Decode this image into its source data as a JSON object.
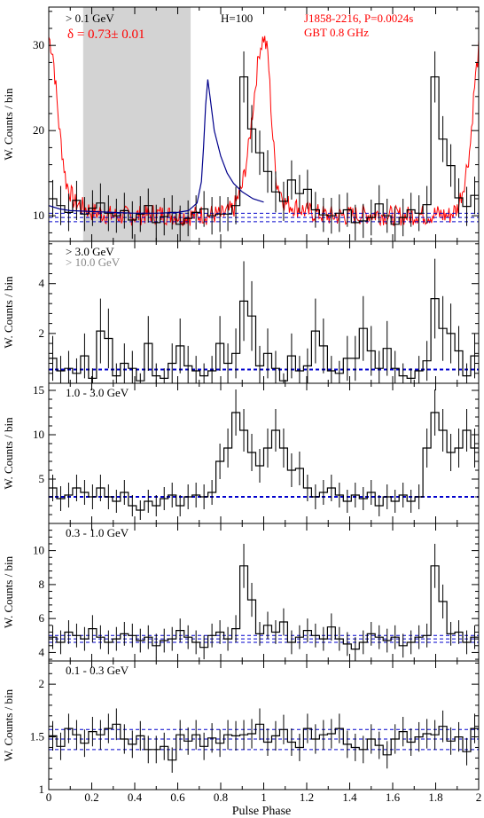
{
  "figure": {
    "xlabel": "Pulse Phase",
    "ylabel": "W. Counts / bin",
    "xticks": [
      "0",
      "0.2",
      "0.4",
      "0.6",
      "0.8",
      "1",
      "1.2",
      "1.4",
      "1.6",
      "1.8",
      "2"
    ],
    "colors": {
      "hist": "#000000",
      "radio": "#ff0000",
      "fit": "#00008b",
      "baseline": "#0000cc",
      "shade": "#d3d3d3",
      "gray_text": "#888888"
    }
  },
  "chart_data": [
    {
      "type": "histogram",
      "panel": "top",
      "energy_label": "> 0.1 GeV",
      "annotation_delta": "δ = 0.73± 0.01",
      "annotation_h": "H=100",
      "pulsar_label": "J1858-2216, P=0.0024s",
      "radio_label": "GBT 0.8 GHz",
      "xlim": [
        0,
        2
      ],
      "ylim": [
        7,
        34.5
      ],
      "yticks": [
        10,
        20,
        30
      ],
      "shaded_region": [
        0.16,
        0.66
      ],
      "background_levels": [
        9.3,
        9.8,
        10.3
      ],
      "values": [
        12.0,
        11.2,
        10.4,
        11.8,
        10.2,
        10.9,
        11.5,
        10.3,
        10.0,
        10.6,
        9.5,
        10.2,
        11.2,
        9.2,
        9.9,
        10.4,
        9.0,
        9.7,
        10.4,
        10.8,
        10.0,
        10.2,
        10.2,
        11.2,
        26.3,
        20.2,
        17.4,
        15.2,
        12.8,
        11.7,
        14.2,
        12.6,
        13.1,
        10.7,
        10.1,
        10.0,
        10.3,
        10.7,
        9.2,
        9.4,
        9.8,
        11.4,
        10.0,
        9.0,
        9.8,
        10.7,
        10.3,
        11.3,
        26.3,
        19.0,
        15.9,
        12.1,
        11.1,
        12.4
      ],
      "errors": [
        2.2,
        2.3,
        2.2,
        2.3,
        2.0,
        2.1,
        2.3,
        2.1,
        2.0,
        2.1,
        2.2,
        2.1,
        2.0,
        2.1,
        2.2,
        2.0,
        2.2,
        2.1,
        2.0,
        2.1,
        2.2,
        2.1,
        2.0,
        2.2,
        3.0,
        2.8,
        2.6,
        2.5,
        2.4,
        2.3,
        2.3,
        2.2,
        2.3,
        2.1,
        2.0,
        2.1,
        2.2,
        2.0,
        2.1,
        2.0,
        2.1,
        2.2,
        2.0,
        2.1,
        2.2,
        2.0,
        2.1,
        2.2,
        3.0,
        2.7,
        2.5,
        2.3,
        2.3,
        2.2
      ],
      "radio_profile_phase": [
        0.0,
        0.02,
        0.05,
        0.08,
        0.12,
        0.2,
        0.3,
        0.4,
        0.5,
        0.6,
        0.68,
        0.72,
        0.74,
        0.76,
        0.8,
        0.86,
        0.9,
        0.93,
        0.96,
        0.98,
        1.0,
        1.02,
        1.04,
        1.06,
        1.1,
        1.2,
        1.3,
        1.4,
        1.5,
        1.6,
        1.68,
        1.72,
        1.75,
        1.8,
        1.86,
        1.9,
        1.93,
        1.96,
        1.98,
        2.0
      ],
      "radio_profile_value": [
        31.0,
        29.0,
        20.0,
        14.0,
        11.5,
        10.5,
        10.0,
        10.0,
        10.2,
        10.0,
        10.0,
        10.2,
        10.0,
        10.2,
        10.0,
        10.8,
        13.5,
        18.0,
        25.0,
        29.5,
        31.0,
        29.0,
        20.0,
        14.0,
        11.5,
        10.5,
        10.0,
        10.0,
        10.2,
        10.0,
        10.0,
        10.2,
        10.0,
        10.2,
        10.0,
        10.8,
        13.5,
        18.0,
        25.0,
        29.5
      ],
      "fit_phase": [
        0.0,
        0.05,
        0.1,
        0.2,
        0.3,
        0.4,
        0.5,
        0.6,
        0.65,
        0.69,
        0.71,
        0.72,
        0.73,
        0.74,
        0.75,
        0.77,
        0.8,
        0.83,
        0.86,
        0.9,
        0.95,
        1.0
      ],
      "fit_value": [
        11.2,
        10.8,
        10.6,
        10.5,
        10.4,
        10.3,
        10.3,
        10.4,
        10.6,
        11.5,
        14.0,
        18.0,
        23.0,
        26.0,
        24.0,
        20.0,
        17.0,
        15.0,
        13.8,
        12.8,
        12.0,
        11.6
      ]
    },
    {
      "type": "histogram",
      "panel": "3gev",
      "energy_label": "> 3.0 GeV",
      "energy_label_2": "> 10.0 GeV",
      "xlim": [
        0,
        2
      ],
      "ylim": [
        0,
        5.7
      ],
      "yticks": [
        2,
        4
      ],
      "background_levels": [
        0.55
      ],
      "values": [
        1.0,
        0.5,
        0.6,
        0.4,
        1.1,
        0.2,
        2.1,
        1.8,
        0.3,
        0.8,
        0.6,
        0.1,
        1.6,
        0.3,
        0.2,
        0.8,
        1.5,
        0.7,
        0.5,
        0.3,
        0.5,
        1.6,
        0.8,
        1.2,
        3.3,
        2.7,
        0.7,
        1.2,
        0.6,
        0.1,
        1.1,
        0.5,
        0.7,
        2.1,
        1.5,
        0.5,
        0.4,
        1.0,
        1.0,
        2.2,
        1.3,
        0.6,
        1.4,
        0.6,
        0.3,
        0.2,
        0.5,
        0.9,
        3.4,
        2.2,
        2.0,
        1.3,
        0.3,
        1.1
      ],
      "errors": [
        0.9,
        0.6,
        0.7,
        0.6,
        0.9,
        0.4,
        1.3,
        1.2,
        0.5,
        0.8,
        0.7,
        0.3,
        1.1,
        0.5,
        0.4,
        0.8,
        1.1,
        0.8,
        0.6,
        0.5,
        0.6,
        1.1,
        0.8,
        1.0,
        1.6,
        1.4,
        0.8,
        1.0,
        0.7,
        0.3,
        0.9,
        0.6,
        0.7,
        1.3,
        1.1,
        0.6,
        0.5,
        0.9,
        0.9,
        1.3,
        1.0,
        0.7,
        1.1,
        0.7,
        0.5,
        0.4,
        0.6,
        0.8,
        1.6,
        1.3,
        1.2,
        1.0,
        0.5,
        0.9
      ]
    },
    {
      "type": "histogram",
      "panel": "1to3",
      "energy_label": "1.0 - 3.0 GeV",
      "xlim": [
        0,
        2
      ],
      "ylim": [
        0,
        15.8
      ],
      "yticks": [
        5,
        10,
        15
      ],
      "background_levels": [
        3.0
      ],
      "values": [
        4.0,
        2.8,
        3.2,
        4.0,
        3.5,
        3.0,
        4.0,
        3.0,
        2.5,
        3.5,
        2.0,
        1.5,
        2.5,
        2.0,
        2.8,
        3.2,
        2.0,
        3.0,
        3.2,
        3.0,
        3.5,
        7.0,
        8.5,
        12.5,
        10.5,
        8.0,
        6.5,
        8.5,
        10.5,
        8.5,
        6.0,
        6.2,
        4.0,
        3.0,
        3.5,
        4.0,
        3.2,
        2.5,
        3.2,
        2.8,
        3.5,
        2.0,
        3.0,
        2.5,
        3.2,
        2.5,
        3.0,
        8.5,
        12.5,
        10.5,
        8.0,
        8.5,
        10.5,
        8.5
      ],
      "errors": [
        1.5,
        1.4,
        1.4,
        1.5,
        1.4,
        1.4,
        1.5,
        1.4,
        1.3,
        1.4,
        1.2,
        1.1,
        1.3,
        1.2,
        1.3,
        1.4,
        1.2,
        1.4,
        1.4,
        1.4,
        1.4,
        2.0,
        2.2,
        2.6,
        2.4,
        2.1,
        1.9,
        2.2,
        2.4,
        2.2,
        1.9,
        1.9,
        1.5,
        1.4,
        1.4,
        1.5,
        1.4,
        1.3,
        1.4,
        1.3,
        1.4,
        1.2,
        1.4,
        1.3,
        1.4,
        1.3,
        1.4,
        2.2,
        2.6,
        2.4,
        2.1,
        2.2,
        2.4,
        2.2
      ]
    },
    {
      "type": "histogram",
      "panel": "03to1",
      "energy_label": "0.3 - 1.0 GeV",
      "xlim": [
        0,
        2
      ],
      "ylim": [
        3.5,
        11.6
      ],
      "yticks": [
        4,
        6,
        8,
        10
      ],
      "background_levels": [
        4.6,
        4.8,
        5.0
      ],
      "values": [
        4.9,
        4.6,
        5.2,
        5.0,
        4.8,
        5.4,
        4.9,
        4.6,
        4.8,
        5.1,
        5.0,
        4.7,
        4.9,
        4.4,
        4.7,
        4.8,
        5.3,
        4.9,
        4.6,
        4.3,
        5.0,
        5.2,
        4.8,
        5.4,
        9.1,
        7.1,
        5.1,
        5.6,
        5.2,
        5.8,
        4.6,
        4.9,
        5.3,
        5.0,
        4.8,
        5.5,
        4.8,
        4.5,
        4.2,
        4.6,
        5.1,
        4.9,
        4.7,
        4.9,
        4.4,
        4.6,
        4.9,
        5.0,
        9.1,
        7.0,
        5.1,
        5.2,
        4.6,
        4.9
      ],
      "errors": [
        0.7,
        0.7,
        0.7,
        0.7,
        0.7,
        0.8,
        0.7,
        0.7,
        0.7,
        0.7,
        0.7,
        0.7,
        0.7,
        0.7,
        0.7,
        0.7,
        0.7,
        0.7,
        0.7,
        0.7,
        0.7,
        0.7,
        0.7,
        0.8,
        1.3,
        1.0,
        0.7,
        0.8,
        0.7,
        0.8,
        0.7,
        0.7,
        0.7,
        0.7,
        0.7,
        0.8,
        0.7,
        0.7,
        0.7,
        0.7,
        0.7,
        0.7,
        0.7,
        0.7,
        0.7,
        0.7,
        0.7,
        0.7,
        1.3,
        1.0,
        0.7,
        0.7,
        0.7,
        0.7
      ]
    },
    {
      "type": "histogram",
      "panel": "01to03",
      "energy_label": "0.1 - 0.3 GeV",
      "xlim": [
        0,
        2
      ],
      "ylim": [
        1.0,
        2.22
      ],
      "yticks": [
        1,
        1.5,
        2
      ],
      "yticklabels": [
        "1",
        "1.5",
        "2"
      ],
      "background_levels": [
        1.38,
        1.48,
        1.57
      ],
      "values": [
        1.51,
        1.41,
        1.58,
        1.52,
        1.44,
        1.55,
        1.52,
        1.58,
        1.62,
        1.48,
        1.43,
        1.51,
        1.38,
        1.38,
        1.41,
        1.28,
        1.52,
        1.46,
        1.52,
        1.41,
        1.49,
        1.44,
        1.52,
        1.51,
        1.52,
        1.53,
        1.62,
        1.45,
        1.51,
        1.57,
        1.45,
        1.4,
        1.58,
        1.48,
        1.52,
        1.53,
        1.58,
        1.43,
        1.4,
        1.38,
        1.48,
        1.42,
        1.33,
        1.48,
        1.55,
        1.45,
        1.5,
        1.53,
        1.52,
        1.6,
        1.46,
        1.5,
        1.36,
        1.58
      ],
      "errors": [
        0.14,
        0.13,
        0.14,
        0.14,
        0.13,
        0.14,
        0.14,
        0.14,
        0.15,
        0.14,
        0.13,
        0.14,
        0.13,
        0.13,
        0.13,
        0.12,
        0.14,
        0.13,
        0.14,
        0.13,
        0.14,
        0.13,
        0.14,
        0.14,
        0.14,
        0.14,
        0.15,
        0.13,
        0.14,
        0.14,
        0.13,
        0.13,
        0.14,
        0.14,
        0.14,
        0.14,
        0.14,
        0.13,
        0.13,
        0.13,
        0.14,
        0.13,
        0.13,
        0.14,
        0.14,
        0.13,
        0.14,
        0.14,
        0.14,
        0.15,
        0.13,
        0.14,
        0.13,
        0.14
      ]
    }
  ]
}
